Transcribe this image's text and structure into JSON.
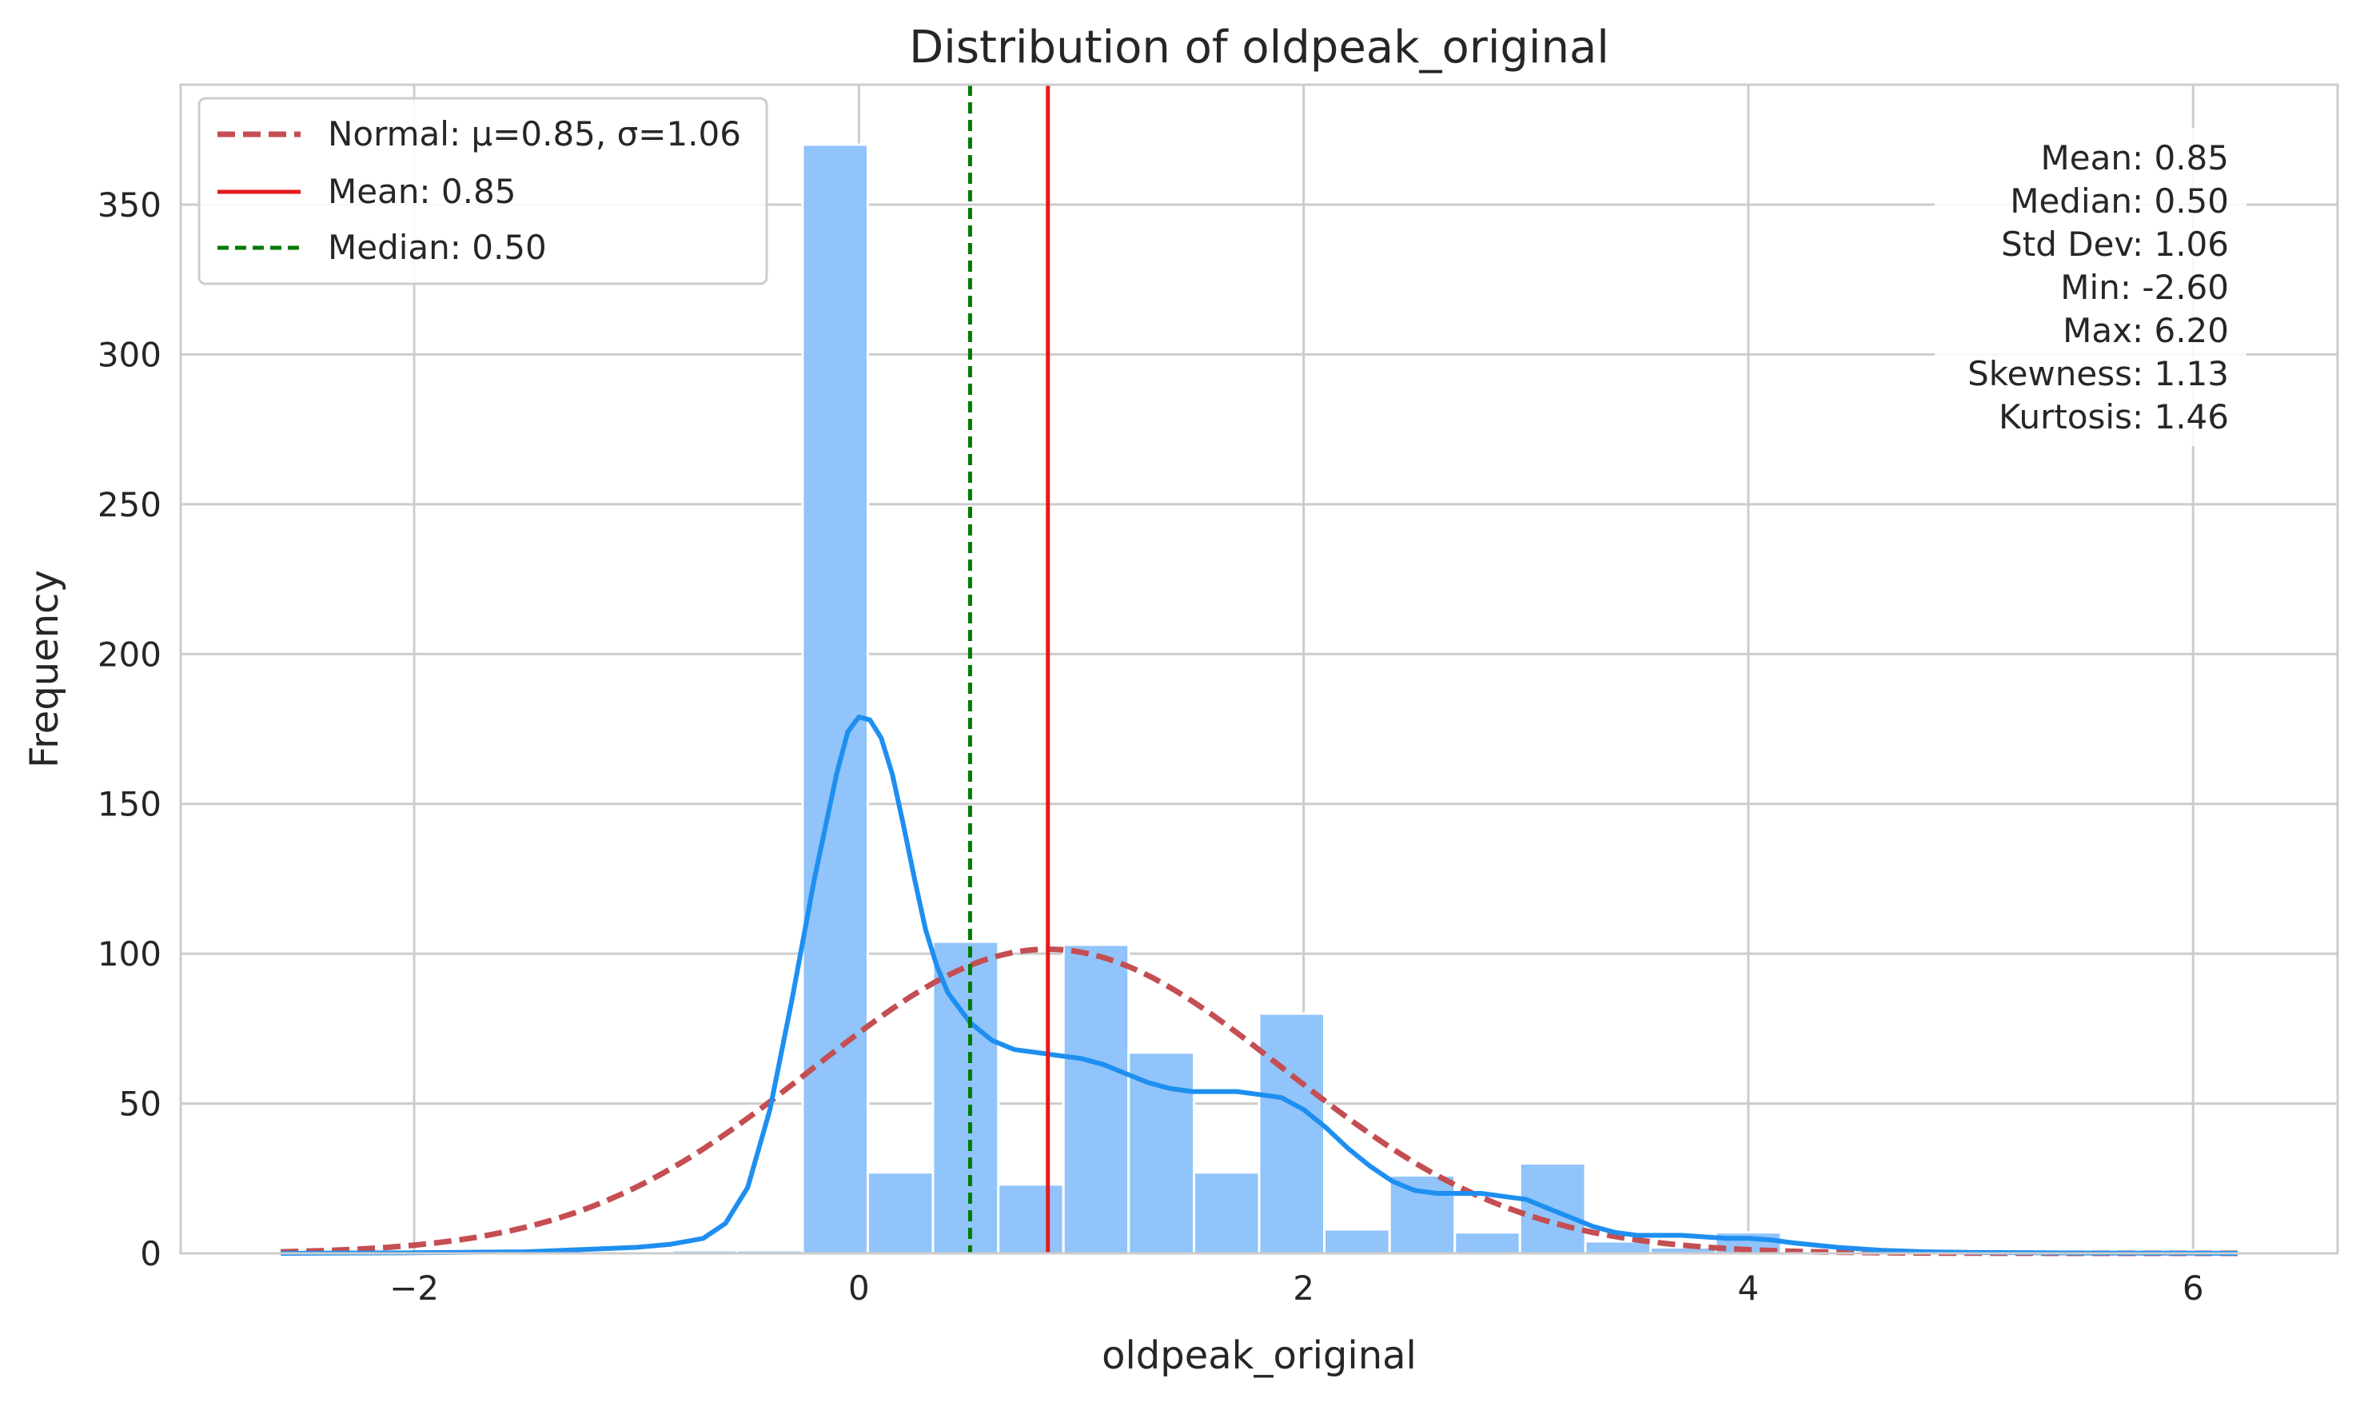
{
  "chart_data": {
    "type": "bar",
    "title": "Distribution of oldpeak_original",
    "xlabel": "oldpeak_original",
    "ylabel": "Frequency",
    "xlim": [
      -3.05,
      6.65
    ],
    "ylim": [
      0,
      390
    ],
    "xticks": [
      -2,
      0,
      2,
      4,
      6
    ],
    "xtick_labels": [
      "−2",
      "0",
      "2",
      "4",
      "6"
    ],
    "yticks": [
      0,
      50,
      100,
      150,
      200,
      250,
      300,
      350
    ],
    "ytick_labels": [
      "0",
      "50",
      "100",
      "150",
      "200",
      "250",
      "300",
      "350"
    ],
    "grid": true,
    "histogram": {
      "bins": [
        {
          "x0": -2.6,
          "x1": -2.307,
          "count": 1
        },
        {
          "x0": -2.307,
          "x1": -2.013,
          "count": 0
        },
        {
          "x0": -2.013,
          "x1": -1.72,
          "count": 0
        },
        {
          "x0": -1.72,
          "x1": -1.427,
          "count": 0
        },
        {
          "x0": -1.427,
          "x1": -1.133,
          "count": 0
        },
        {
          "x0": -1.133,
          "x1": -0.84,
          "count": 0
        },
        {
          "x0": -0.84,
          "x1": -0.547,
          "count": 1
        },
        {
          "x0": -0.547,
          "x1": -0.253,
          "count": 1
        },
        {
          "x0": -0.253,
          "x1": 0.04,
          "count": 370
        },
        {
          "x0": 0.04,
          "x1": 0.333,
          "count": 27
        },
        {
          "x0": 0.333,
          "x1": 0.627,
          "count": 104
        },
        {
          "x0": 0.627,
          "x1": 0.92,
          "count": 23
        },
        {
          "x0": 0.92,
          "x1": 1.213,
          "count": 103
        },
        {
          "x0": 1.213,
          "x1": 1.507,
          "count": 67
        },
        {
          "x0": 1.507,
          "x1": 1.8,
          "count": 27
        },
        {
          "x0": 1.8,
          "x1": 2.093,
          "count": 80
        },
        {
          "x0": 2.093,
          "x1": 2.387,
          "count": 8
        },
        {
          "x0": 2.387,
          "x1": 2.68,
          "count": 26
        },
        {
          "x0": 2.68,
          "x1": 2.973,
          "count": 7
        },
        {
          "x0": 2.973,
          "x1": 3.267,
          "count": 30
        },
        {
          "x0": 3.267,
          "x1": 3.56,
          "count": 4
        },
        {
          "x0": 3.56,
          "x1": 3.853,
          "count": 2
        },
        {
          "x0": 3.853,
          "x1": 4.147,
          "count": 7
        },
        {
          "x0": 4.147,
          "x1": 4.44,
          "count": 0
        },
        {
          "x0": 4.44,
          "x1": 4.733,
          "count": 0
        },
        {
          "x0": 4.733,
          "x1": 5.027,
          "count": 0
        },
        {
          "x0": 5.027,
          "x1": 5.32,
          "count": 0
        },
        {
          "x0": 5.32,
          "x1": 5.613,
          "count": 0
        },
        {
          "x0": 5.613,
          "x1": 5.907,
          "count": 0
        },
        {
          "x0": 5.907,
          "x1": 6.2,
          "count": 1
        }
      ],
      "color": "#90c4fa"
    },
    "kde": {
      "color": "#1e8ff0",
      "x": [
        -2.6,
        -2.0,
        -1.5,
        -1.0,
        -0.85,
        -0.7,
        -0.6,
        -0.5,
        -0.4,
        -0.3,
        -0.2,
        -0.1,
        -0.05,
        0.0,
        0.05,
        0.1,
        0.15,
        0.2,
        0.25,
        0.3,
        0.35,
        0.4,
        0.5,
        0.6,
        0.7,
        0.8,
        0.9,
        1.0,
        1.1,
        1.2,
        1.3,
        1.4,
        1.5,
        1.6,
        1.7,
        1.8,
        1.9,
        2.0,
        2.1,
        2.2,
        2.3,
        2.4,
        2.5,
        2.6,
        2.7,
        2.8,
        2.9,
        3.0,
        3.1,
        3.2,
        3.3,
        3.4,
        3.5,
        3.6,
        3.7,
        3.8,
        3.9,
        4.0,
        4.1,
        4.2,
        4.4,
        4.6,
        4.8,
        5.0,
        5.5,
        6.0,
        6.2
      ],
      "y": [
        0,
        0.2,
        0.5,
        2,
        3,
        5,
        10,
        22,
        48,
        85,
        125,
        160,
        174,
        179,
        178,
        172,
        160,
        143,
        125,
        108,
        96,
        87,
        77,
        71,
        68,
        67,
        66,
        65,
        63,
        60,
        57,
        55,
        54,
        54,
        54,
        53,
        52,
        48,
        42,
        35,
        29,
        24,
        21,
        20,
        20,
        20,
        19,
        18,
        15,
        12,
        9,
        7,
        6,
        6,
        6,
        5.5,
        5,
        5,
        4.5,
        3.5,
        2,
        1,
        0.5,
        0.3,
        0.1,
        0.05,
        0
      ],
      "legend": false
    },
    "series": [
      {
        "name": "Normal: μ=0.85, σ=1.06",
        "kind": "normal_pdf",
        "mu": 0.85,
        "sigma": 1.06,
        "peak": 101.5,
        "x_range": [
          -2.6,
          6.2
        ],
        "color": "#c44e52",
        "dash": true
      },
      {
        "name": "Mean: 0.85",
        "kind": "vline",
        "x": 0.85,
        "color": "#e31a1c",
        "dash": false
      },
      {
        "name": "Median: 0.50",
        "kind": "vline",
        "x": 0.5,
        "color": "#007b00",
        "dash": true
      }
    ],
    "legend_position": "top-left",
    "stats": [
      "Mean: 0.85",
      "Median: 0.50",
      "Std Dev: 1.06",
      "Min: -2.60",
      "Max: 6.20",
      "Skewness: 1.13",
      "Kurtosis: 1.46"
    ],
    "stats_position": "top-right"
  }
}
